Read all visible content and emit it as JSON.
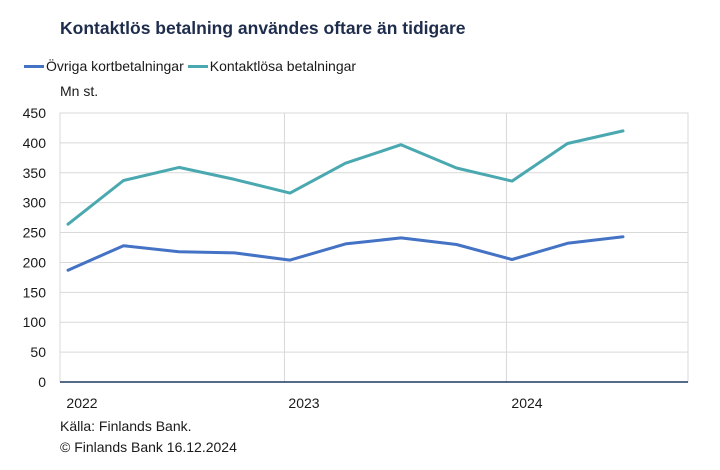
{
  "title": "Kontaktlös betalning användes oftare än tidigare",
  "unit_label": "Mn st.",
  "source": "Källa: Finlands Bank.",
  "copyright": "© Finlands Bank 16.12.2024",
  "colors": {
    "ovriga": "#4472c4",
    "kontaktlosa": "#4aa8b0",
    "grid": "#d9d9d9",
    "axis": "#1f3864"
  },
  "chart_data": {
    "type": "line",
    "x_tick_labels": [
      "2022",
      "2023",
      "2024"
    ],
    "ylim": [
      0,
      450
    ],
    "yticks": [
      0,
      50,
      100,
      150,
      200,
      250,
      300,
      350,
      400,
      450
    ],
    "grid": true,
    "legend_position": "top-left",
    "x": [
      "2022 Q1",
      "2022 Q2",
      "2022 Q3",
      "2022 Q4",
      "2023 Q1",
      "2023 Q2",
      "2023 Q3",
      "2023 Q4",
      "2024 Q1",
      "2024 Q2",
      "2024 Q3"
    ],
    "series": [
      {
        "name": "Övriga kortbetalningar",
        "color": "#4472c4",
        "values": [
          187,
          228,
          218,
          216,
          204,
          231,
          241,
          230,
          205,
          232,
          243
        ]
      },
      {
        "name": "Kontaktlösa betalningar",
        "color": "#4aa8b0",
        "values": [
          264,
          337,
          359,
          339,
          316,
          366,
          397,
          358,
          336,
          399,
          420
        ]
      }
    ]
  }
}
